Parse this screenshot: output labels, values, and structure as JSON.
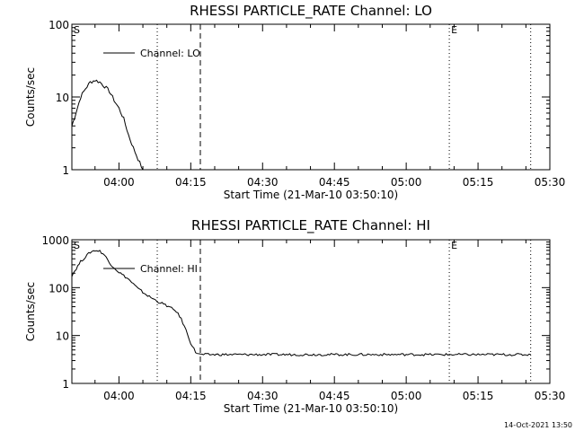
{
  "chart_data": [
    {
      "type": "line",
      "title": "RHESSI PARTICLE_RATE Channel: LO",
      "xlabel": "Start Time (21-Mar-10 03:50:10)",
      "ylabel": "Counts/sec",
      "y_scale": "log",
      "ylim": [
        1,
        100
      ],
      "xlim": [
        "03:50:10",
        "05:30"
      ],
      "xticks": [
        "04:00",
        "04:15",
        "04:30",
        "04:45",
        "05:00",
        "05:15",
        "05:30"
      ],
      "yticks": [
        "1",
        "10",
        "100"
      ],
      "legend": {
        "label": "Channel: LO",
        "position": "top-left"
      },
      "markers": [
        {
          "label": "S",
          "time": "03:50:10",
          "style": "text"
        },
        {
          "label": "",
          "time": "04:08",
          "style": "dotted"
        },
        {
          "label": "",
          "time": "04:17",
          "style": "dashed"
        },
        {
          "label": "E",
          "time": "05:09",
          "style": "dotted"
        },
        {
          "label": "",
          "time": "05:26",
          "style": "dotted"
        }
      ],
      "series": [
        {
          "name": "Channel: LO",
          "x": [
            "03:50:10",
            "03:51",
            "03:52",
            "03:53",
            "03:54",
            "03:55",
            "03:56",
            "03:57",
            "03:58",
            "03:59",
            "04:00",
            "04:01",
            "04:02",
            "04:03",
            "04:04",
            "04:05",
            "04:06"
          ],
          "values": [
            4,
            6,
            10,
            13,
            16,
            17,
            16,
            14,
            12,
            9,
            7,
            5,
            3,
            2,
            1.4,
            1,
            1
          ]
        }
      ]
    },
    {
      "type": "line",
      "title": "RHESSI PARTICLE_RATE Channel: HI",
      "xlabel": "Start Time (21-Mar-10 03:50:10)",
      "ylabel": "Counts/sec",
      "y_scale": "log",
      "ylim": [
        1,
        1000
      ],
      "xlim": [
        "03:50:10",
        "05:30"
      ],
      "xticks": [
        "04:00",
        "04:15",
        "04:30",
        "04:45",
        "05:00",
        "05:15",
        "05:30"
      ],
      "yticks": [
        "1",
        "10",
        "100",
        "1000"
      ],
      "legend": {
        "label": "Channel: HI",
        "position": "top-left"
      },
      "markers": [
        {
          "label": "S",
          "time": "03:50:10",
          "style": "text"
        },
        {
          "label": "",
          "time": "04:08",
          "style": "dotted"
        },
        {
          "label": "",
          "time": "04:17",
          "style": "dashed"
        },
        {
          "label": "E",
          "time": "05:09",
          "style": "dotted"
        },
        {
          "label": "",
          "time": "05:26",
          "style": "dotted"
        }
      ],
      "series": [
        {
          "name": "Channel: HI",
          "x": [
            "03:50:10",
            "03:52",
            "03:54",
            "03:55",
            "03:56",
            "03:57",
            "03:58",
            "04:00",
            "04:02",
            "04:04",
            "04:06",
            "04:08",
            "04:10",
            "04:12",
            "04:13",
            "04:14",
            "04:15",
            "04:16",
            "04:17",
            "04:20",
            "04:30",
            "04:45",
            "05:00",
            "05:15",
            "05:26"
          ],
          "values": [
            180,
            350,
            550,
            600,
            580,
            480,
            330,
            210,
            150,
            95,
            68,
            52,
            42,
            32,
            22,
            13,
            7,
            4.5,
            4,
            4,
            4,
            4,
            4,
            4,
            4
          ]
        }
      ]
    }
  ],
  "footer_stamp": "14-Oct-2021 13:50"
}
